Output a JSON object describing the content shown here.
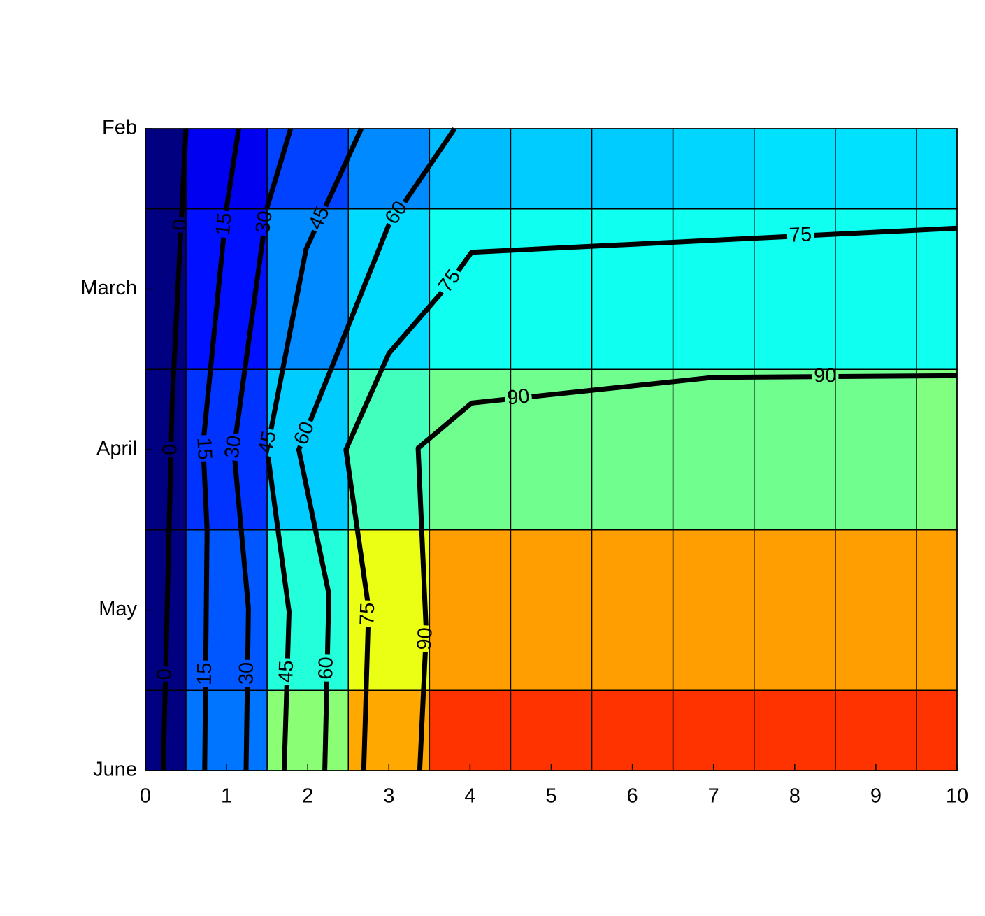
{
  "chart_data": {
    "type": "heatmap",
    "x": [
      0,
      1,
      2,
      3,
      4,
      5,
      6,
      7,
      8,
      9,
      10
    ],
    "y": [
      0,
      1,
      2,
      3,
      4
    ],
    "z": [
      [
        0,
        22,
        38,
        52,
        62,
        65,
        65,
        67,
        69,
        69,
        69
      ],
      [
        0,
        28,
        52,
        68,
        78,
        78,
        78,
        78,
        78,
        78,
        78
      ],
      [
        0,
        35,
        65,
        88,
        97,
        97,
        97,
        97,
        97,
        97,
        100
      ],
      [
        0,
        42,
        82,
        121,
        144,
        144,
        144,
        144,
        144,
        144,
        144
      ],
      [
        0,
        48,
        102,
        142,
        165,
        165,
        165,
        165,
        165,
        165,
        165
      ]
    ],
    "colormap": "jet",
    "clim": [
      0,
      200
    ],
    "xlim": [
      0,
      10
    ],
    "xticks": [
      0,
      1,
      2,
      3,
      4,
      5,
      6,
      7,
      8,
      9,
      10
    ],
    "ylim": [
      4,
      0
    ],
    "yticks": [
      {
        "value": 0,
        "label": "Feb"
      },
      {
        "value": 1,
        "label": "March"
      },
      {
        "value": 2,
        "label": "April"
      },
      {
        "value": 3,
        "label": "May"
      },
      {
        "value": 4,
        "label": "June"
      }
    ],
    "contours": [
      {
        "level": 0,
        "x": [
          0.5,
          0.45,
          0.33,
          0.22
        ],
        "y": [
          0,
          0.5,
          1.7,
          4
        ]
      },
      {
        "level": 15,
        "x": [
          1.15,
          1.0,
          0.71,
          0.76,
          0.73
        ],
        "y": [
          0,
          0.49,
          1.97,
          2.5,
          4
        ]
      },
      {
        "level": 30,
        "x": [
          1.79,
          1.5,
          1.09,
          1.27,
          1.24
        ],
        "y": [
          0,
          0.49,
          2.0,
          2.99,
          4
        ]
      },
      {
        "level": 45,
        "x": [
          2.66,
          1.98,
          1.5,
          1.77,
          1.71
        ],
        "y": [
          0,
          0.75,
          2.0,
          3.01,
          4
        ]
      },
      {
        "level": 60,
        "x": [
          3.81,
          2.99,
          1.89,
          2.26,
          2.21
        ],
        "y": [
          0,
          0.61,
          2.0,
          2.9,
          4
        ]
      },
      {
        "level": 75,
        "x": [
          10,
          4.02,
          3.72,
          3.0,
          2.47,
          2.75,
          2.69
        ],
        "y": [
          0.62,
          0.77,
          0.98,
          1.4,
          2.0,
          2.99,
          4
        ]
      },
      {
        "level": 90,
        "x": [
          10,
          7.0,
          4.02,
          3.36,
          3.46,
          3.38
        ],
        "y": [
          1.54,
          1.55,
          1.71,
          1.99,
          3.14,
          4
        ]
      }
    ],
    "contour_color": "#000000"
  }
}
